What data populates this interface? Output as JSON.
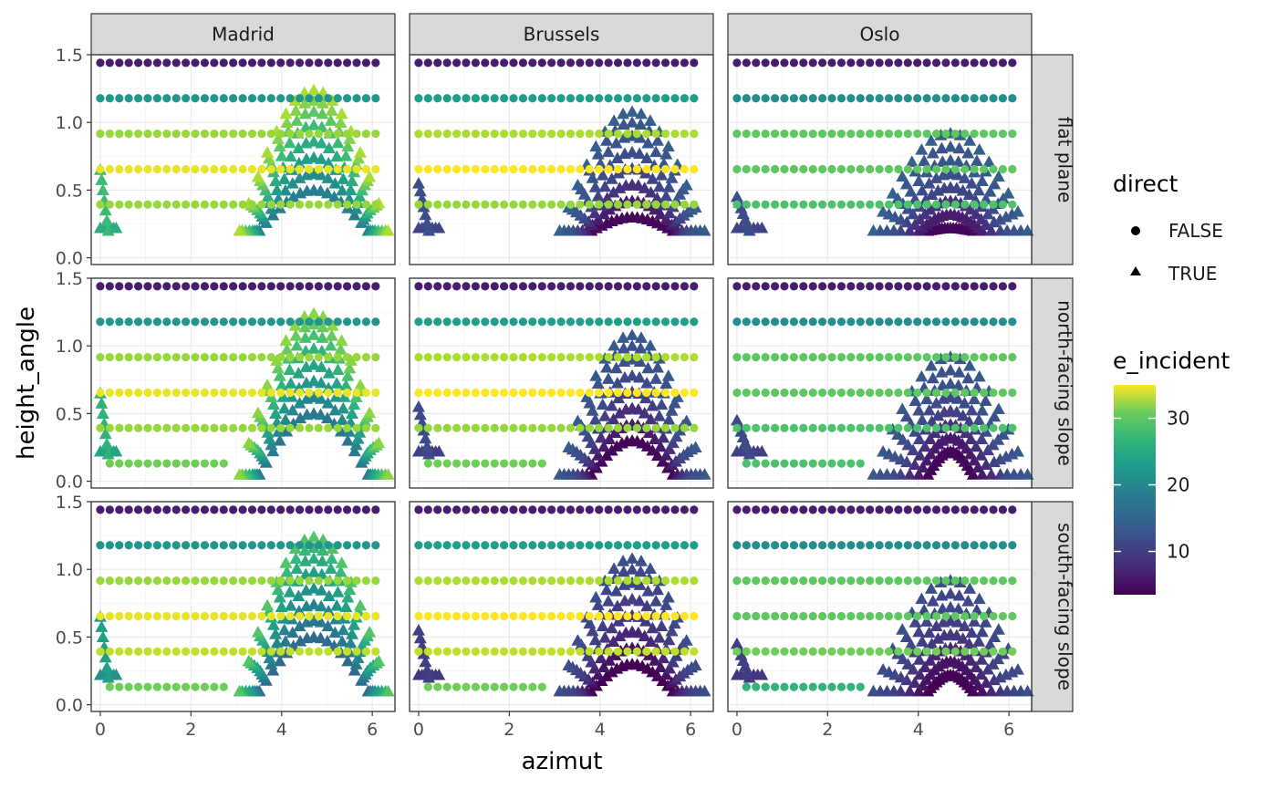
{
  "chart_data": {
    "type": "scatter",
    "title": "",
    "xlabel": "azimut",
    "ylabel": "height_angle",
    "xlim": [
      -0.2,
      6.5
    ],
    "ylim": [
      -0.05,
      1.5
    ],
    "x_ticks": [
      0,
      2,
      4,
      6
    ],
    "x_tick_labels": [
      "0",
      "2",
      "4",
      "6"
    ],
    "y_ticks": [
      0.0,
      0.5,
      1.0,
      1.5
    ],
    "y_tick_labels": [
      "0.0",
      "0.5",
      "1.0",
      "1.5"
    ],
    "columns": [
      "Madrid",
      "Brussels",
      "Oslo"
    ],
    "rows": [
      "flat plane",
      "north-facing slope",
      "south-facing slope"
    ],
    "grid": true,
    "legend_shape": {
      "title": "direct",
      "entries": [
        {
          "label": "FALSE",
          "shape": "circle"
        },
        {
          "label": "TRUE",
          "shape": "triangle"
        }
      ]
    },
    "legend_color": {
      "title": "e_incident",
      "range": [
        3.5,
        35
      ],
      "ticks": [
        10,
        20,
        30
      ],
      "tick_labels": [
        "10",
        "20",
        "30"
      ],
      "palette": "viridis"
    },
    "diffuse_series": {
      "shape": "circle",
      "azimuths": [
        0.0,
        0.209,
        0.419,
        0.628,
        0.838,
        1.047,
        1.257,
        1.466,
        1.676,
        1.885,
        2.094,
        2.304,
        2.513,
        2.723,
        2.932,
        3.142,
        3.351,
        3.56,
        3.77,
        3.979,
        4.189,
        4.398,
        4.608,
        4.817,
        5.027,
        5.236,
        5.445,
        5.655,
        5.864,
        6.074
      ],
      "height_levels": [
        0.131,
        0.393,
        0.654,
        0.916,
        1.178,
        1.44
      ],
      "e_incident_by_panel": {
        "Madrid|flat plane": [
          null,
          30,
          34,
          30,
          20,
          6
        ],
        "Madrid|north-facing slope": [
          28,
          30,
          34,
          30,
          20,
          6
        ],
        "Madrid|south-facing slope": [
          28,
          32,
          34,
          30,
          20,
          6
        ],
        "Brussels|flat plane": [
          null,
          30,
          35,
          31,
          21,
          6
        ],
        "Brussels|north-facing slope": [
          28,
          30,
          35,
          31,
          21,
          6
        ],
        "Brussels|south-facing slope": [
          28,
          32,
          35,
          31,
          21,
          6
        ],
        "Oslo|flat plane": [
          null,
          26,
          27,
          27,
          19,
          6
        ],
        "Oslo|north-facing slope": [
          26,
          26,
          27,
          27,
          19,
          6
        ],
        "Oslo|south-facing slope": [
          24,
          28,
          27,
          27,
          19,
          6
        ]
      }
    },
    "direct_series": {
      "shape": "triangle",
      "sun_path_center_azimuth": 4.71,
      "by_city": {
        "Madrid": {
          "arc_half_widths": [
            1.2,
            1.25,
            1.3,
            1.35,
            1.42,
            1.5,
            1.58,
            1.64
          ],
          "arc_peak_heights": [
            0.5,
            0.62,
            0.74,
            0.86,
            0.98,
            1.08,
            1.16,
            1.24
          ],
          "arc_base_heights": [
            0.2,
            0.2,
            0.2,
            0.2,
            0.2,
            0.2,
            0.2,
            0.2
          ],
          "arc_e_incident": [
            17,
            19,
            21,
            23,
            25,
            27,
            29,
            31
          ],
          "left_wedge": {
            "x": [
              0.0,
              0.35
            ],
            "y": [
              0.2,
              0.65
            ]
          }
        },
        "Brussels": {
          "arc_half_widths": [
            0.9,
            1.0,
            1.1,
            1.2,
            1.3,
            1.4,
            1.5,
            1.6
          ],
          "arc_peak_heights": [
            0.3,
            0.42,
            0.54,
            0.66,
            0.78,
            0.9,
            1.0,
            1.08
          ],
          "arc_base_heights": [
            0.2,
            0.2,
            0.2,
            0.2,
            0.2,
            0.2,
            0.2,
            0.2
          ],
          "arc_e_incident": [
            4,
            6,
            8,
            10,
            11,
            12,
            12,
            13
          ],
          "left_wedge": {
            "x": [
              0.0,
              0.45
            ],
            "y": [
              0.2,
              0.55
            ]
          }
        },
        "Oslo": {
          "arc_half_widths": [
            0.5,
            0.7,
            0.9,
            1.1,
            1.25,
            1.4,
            1.55,
            1.7
          ],
          "arc_peak_heights": [
            0.22,
            0.32,
            0.42,
            0.52,
            0.62,
            0.72,
            0.82,
            0.92
          ],
          "arc_base_heights": [
            0.2,
            0.2,
            0.2,
            0.2,
            0.2,
            0.2,
            0.2,
            0.2
          ],
          "arc_e_incident": [
            4,
            6,
            8,
            10,
            11,
            12,
            12,
            13
          ],
          "left_wedge": {
            "x": [
              0.0,
              0.55
            ],
            "y": [
              0.2,
              0.45
            ]
          }
        }
      }
    }
  }
}
